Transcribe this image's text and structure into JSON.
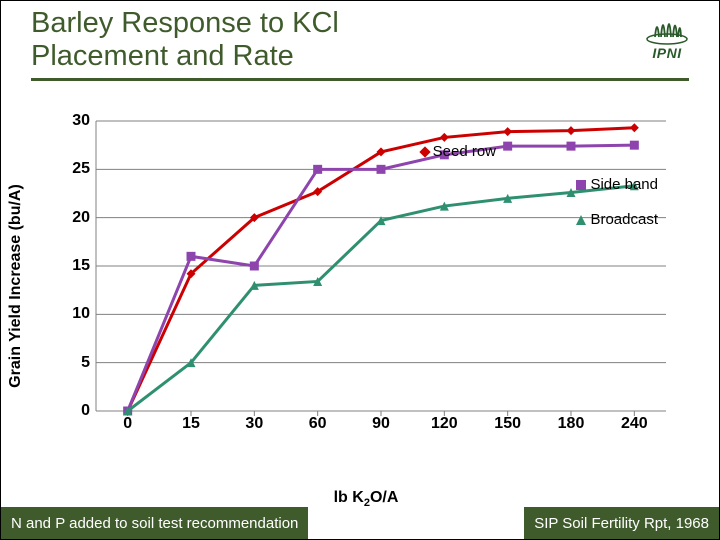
{
  "title": {
    "line1": "Barley Response to KCl",
    "line2": "Placement and Rate"
  },
  "logo": {
    "text": "IPNI",
    "color": "#2a5a2a"
  },
  "header_border_color": "#3f5b2c",
  "chart": {
    "type": "line",
    "ylabel": "Grain Yield Increase (bu/A)",
    "xlabel_parts": {
      "pre": "lb K",
      "sub": "2",
      "post": "O/A"
    },
    "ylim": [
      0,
      30
    ],
    "ytick_step": 5,
    "x_categories": [
      "0",
      "15",
      "30",
      "60",
      "90",
      "120",
      "150",
      "180",
      "240"
    ],
    "plot_bg": "#ffffff",
    "grid_color": "#808080",
    "grid_width": 1,
    "series": [
      {
        "name": "Seed row",
        "color": "#cc0000",
        "marker": "diamond",
        "marker_fill": "#cc0000",
        "width": 3,
        "y": [
          0,
          14.2,
          20.0,
          22.7,
          26.8,
          28.3,
          28.9,
          29.0,
          29.3
        ],
        "legend_pos": {
          "right": 170,
          "top": 22
        }
      },
      {
        "name": "Side band",
        "color": "#8e44ad",
        "marker": "square",
        "marker_fill": "#8e44ad",
        "width": 3,
        "y": [
          0,
          16.0,
          15.0,
          25.0,
          25.0,
          26.5,
          27.4,
          27.4,
          27.5
        ],
        "legend_pos": {
          "right": 8,
          "top": 55
        }
      },
      {
        "name": "Broadcast",
        "color": "#2e9070",
        "marker": "triangle",
        "marker_fill": "#2e9070",
        "width": 3,
        "y": [
          0,
          5.0,
          13.0,
          13.4,
          19.7,
          21.2,
          22.0,
          22.6,
          23.3
        ],
        "legend_pos": {
          "right": 8,
          "top": 90
        }
      }
    ]
  },
  "footer": {
    "left": "N and P added to soil test recommendation",
    "right": "SIP Soil Fertility Rpt, 1968",
    "bg": "#3f5b2c",
    "color": "#ffffff"
  }
}
